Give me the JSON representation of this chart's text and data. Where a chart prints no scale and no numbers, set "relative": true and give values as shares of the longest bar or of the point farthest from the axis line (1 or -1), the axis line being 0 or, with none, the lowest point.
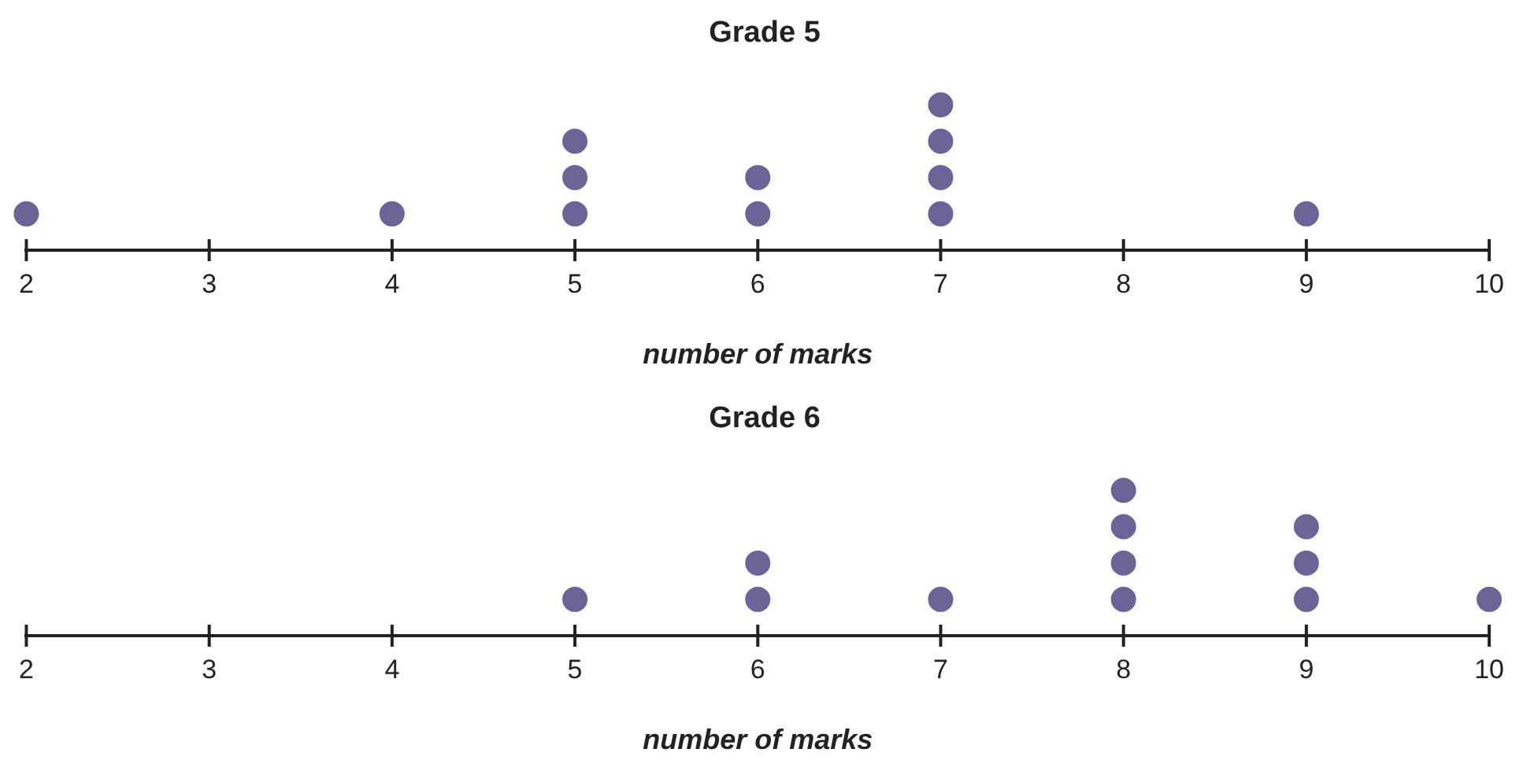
{
  "chart_data": [
    {
      "type": "scatter",
      "title": "Grade 5",
      "xlabel": "number of marks",
      "color": "#6b6496",
      "marker": "circle",
      "relative": true,
      "tick_labels": "x",
      "xlim": [
        2,
        10
      ],
      "xticks": [
        2,
        3,
        4,
        5,
        6,
        7,
        8,
        9,
        10
      ],
      "x": [
        2,
        4,
        5,
        5,
        5,
        6,
        6,
        7,
        7,
        7,
        7,
        9
      ],
      "values": [
        0.25,
        0.25,
        0.25,
        0.5,
        0.75,
        0.25,
        0.5,
        0.25,
        0.5,
        0.75,
        1,
        0.25
      ]
    },
    {
      "type": "scatter",
      "title": "Grade 6",
      "xlabel": "number of marks",
      "color": "#6b6496",
      "marker": "circle",
      "relative": true,
      "tick_labels": "x",
      "xlim": [
        2,
        10
      ],
      "xticks": [
        2,
        3,
        4,
        5,
        6,
        7,
        8,
        9,
        10
      ],
      "x": [
        5,
        6,
        6,
        7,
        8,
        8,
        8,
        8,
        9,
        9,
        9,
        10
      ],
      "values": [
        0.25,
        0.25,
        0.5,
        0.25,
        0.25,
        0.5,
        0.75,
        1,
        0.25,
        0.5,
        0.75,
        0.25
      ]
    }
  ]
}
